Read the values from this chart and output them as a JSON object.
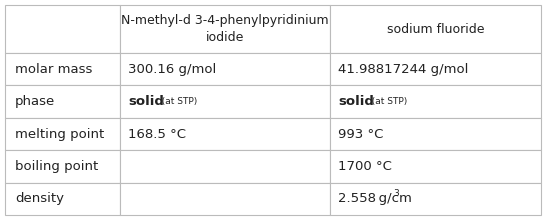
{
  "col_headers": [
    "",
    "N-methyl-d 3-4-phenylpyridinium\niodide",
    "sodium fluoride"
  ],
  "row_labels": [
    "molar mass",
    "phase",
    "melting point",
    "boiling point",
    "density"
  ],
  "col1_values": [
    "300.16 g/mol",
    "solid_stp",
    "168.5 °C",
    "",
    ""
  ],
  "col2_values": [
    "41.98817244 g/mol",
    "solid_stp",
    "993 °C",
    "1700 °C",
    "density_val"
  ],
  "background_color": "#ffffff",
  "border_color": "#bbbbbb",
  "text_color": "#222222",
  "header_fontsize": 9.0,
  "cell_fontsize": 9.5,
  "label_fontsize": 9.5
}
